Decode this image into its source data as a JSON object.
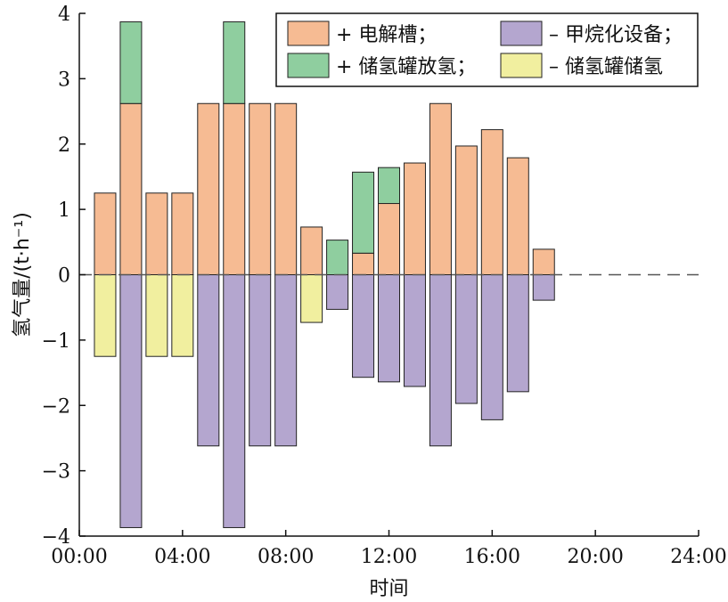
{
  "chart_data": {
    "type": "bar",
    "stacked": true,
    "xlabel": "时间",
    "ylabel": "氢气量/(t·h⁻¹)",
    "ylim": [
      -4,
      4
    ],
    "xlim": [
      0,
      24
    ],
    "x_ticks": [
      "00:00",
      "04:00",
      "08:00",
      "12:00",
      "16:00",
      "20:00",
      "24:00"
    ],
    "y_ticks": [
      "-4",
      "-3",
      "-2",
      "-1",
      "0",
      "1",
      "2",
      "3",
      "4"
    ],
    "grid": false,
    "zero_line": "dashed",
    "legend_position": "top-right",
    "x": [
      1,
      2,
      3,
      4,
      5,
      6,
      7,
      8,
      9,
      10,
      11,
      12,
      13,
      14,
      15,
      16,
      17,
      18
    ],
    "series": [
      {
        "name": "+ 电解槽；",
        "color": "#f6bb93",
        "values": [
          1.25,
          2.62,
          1.25,
          1.25,
          2.62,
          2.62,
          2.62,
          2.62,
          0.73,
          0,
          0.33,
          1.09,
          1.71,
          2.62,
          1.97,
          2.22,
          1.79,
          0.39
        ]
      },
      {
        "name": "+ 储氢罐放氢；",
        "color": "#8fce9f",
        "values": [
          0,
          1.25,
          0,
          0,
          0,
          1.25,
          0,
          0,
          0,
          0.53,
          1.24,
          0.55,
          0,
          0,
          0,
          0,
          0,
          0
        ]
      },
      {
        "name": "– 甲烷化设备；",
        "color": "#b4a6cf",
        "values": [
          0,
          -3.87,
          0,
          0,
          -2.62,
          -3.87,
          -2.62,
          -2.62,
          0,
          -0.53,
          -1.57,
          -1.64,
          -1.71,
          -2.62,
          -1.97,
          -2.22,
          -1.79,
          -0.39
        ]
      },
      {
        "name": "– 储氢罐储氢",
        "color": "#f1ef9f",
        "values": [
          -1.25,
          0,
          -1.25,
          -1.25,
          0,
          0,
          0,
          0,
          -0.73,
          0,
          0,
          0,
          0,
          0,
          0,
          0,
          0,
          0
        ]
      }
    ]
  }
}
